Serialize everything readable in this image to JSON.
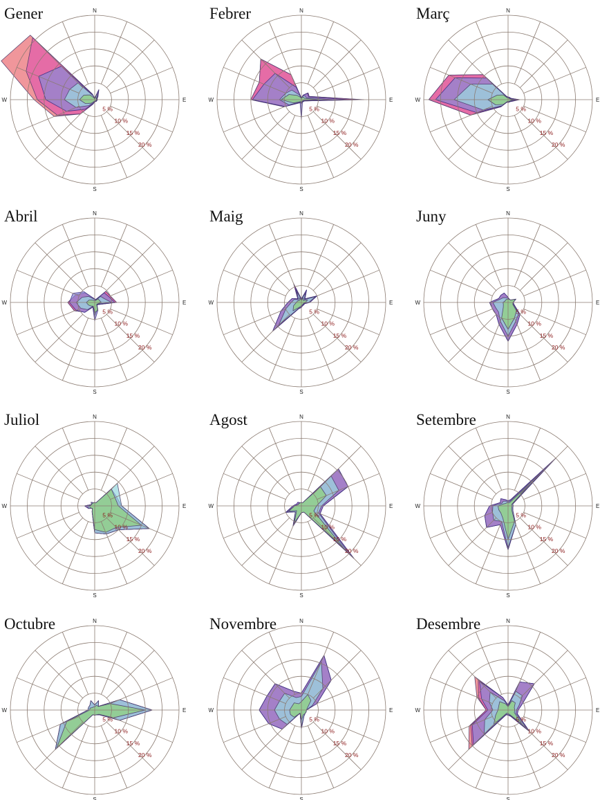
{
  "chart_data": {
    "type": "wind-rose",
    "directions": [
      "N",
      "NNE",
      "NE",
      "ENE",
      "E",
      "ESE",
      "SE",
      "SSE",
      "S",
      "SSW",
      "SW",
      "WSW",
      "W",
      "WNW",
      "NW",
      "NNW"
    ],
    "compass_labels": {
      "n": "N",
      "e": "E",
      "s": "S",
      "w": "W"
    },
    "rings": [
      5,
      10,
      15,
      20,
      25
    ],
    "ring_labels": [
      "5 %",
      "10 %",
      "15 %",
      "20 %"
    ],
    "layer_colors": [
      "#ea6e74",
      "#e05cab",
      "#8b88d6",
      "#9ad8df",
      "#8fd17c"
    ],
    "months": [
      {
        "name": "Gener",
        "layers": [
          [
            0.4,
            3.2,
            1.4,
            0.8,
            0.8,
            0.7,
            0.7,
            0.6,
            0.7,
            1.5,
            6.0,
            13.0,
            18.0,
            30.0,
            27.0,
            1.8
          ],
          [
            0.4,
            3.2,
            1.4,
            0.8,
            0.8,
            0.7,
            0.7,
            0.6,
            0.7,
            1.5,
            6.0,
            12.0,
            17.0,
            22.0,
            26.0,
            1.8
          ],
          [
            0.4,
            3.0,
            1.3,
            0.7,
            0.8,
            0.7,
            0.7,
            0.6,
            0.6,
            1.3,
            4.0,
            9.0,
            14.5,
            18.0,
            14.0,
            1.6
          ],
          [
            0.3,
            2.0,
            1.0,
            0.6,
            0.7,
            0.6,
            0.6,
            0.5,
            0.5,
            1.0,
            2.5,
            6.0,
            9.0,
            8.0,
            7.0,
            1.3
          ],
          [
            0.2,
            1.0,
            0.7,
            0.5,
            0.5,
            0.5,
            0.5,
            0.4,
            0.4,
            0.6,
            1.5,
            3.0,
            4.5,
            3.5,
            2.0,
            0.6
          ]
        ]
      },
      {
        "name": "Febrer",
        "layers": [
          [
            0.5,
            1.5,
            2.8,
            2.5,
            18.5,
            1.0,
            0.8,
            0.8,
            1.0,
            1.0,
            1.5,
            5.5,
            15.0,
            13.5,
            17.0,
            8.0
          ],
          [
            0.5,
            1.5,
            2.8,
            2.5,
            18.0,
            1.0,
            0.8,
            0.8,
            1.0,
            1.0,
            1.5,
            5.5,
            15.0,
            13.5,
            17.0,
            8.0
          ],
          [
            0.5,
            1.5,
            2.6,
            2.3,
            14.0,
            1.0,
            0.8,
            0.8,
            6.0,
            1.0,
            1.5,
            5.3,
            14.5,
            12.0,
            11.0,
            4.0
          ],
          [
            0.4,
            1.2,
            1.6,
            1.5,
            9.0,
            0.8,
            0.7,
            0.7,
            1.2,
            0.8,
            1.2,
            4.0,
            6.5,
            5.0,
            4.0,
            1.5
          ],
          [
            0.3,
            0.8,
            1.0,
            1.0,
            5.5,
            0.6,
            0.5,
            0.6,
            0.8,
            0.6,
            0.9,
            2.5,
            6.0,
            4.0,
            1.8,
            0.8
          ]
        ]
      },
      {
        "name": "Març",
        "layers": [
          [
            0.8,
            0.8,
            0.8,
            1.0,
            3.5,
            1.3,
            0.8,
            0.8,
            0.8,
            0.8,
            3.0,
            12.0,
            23.5,
            19.0,
            10.5,
            1.0
          ],
          [
            0.8,
            0.8,
            0.8,
            1.0,
            3.3,
            1.3,
            0.8,
            0.8,
            0.8,
            0.8,
            3.0,
            12.0,
            23.5,
            19.0,
            10.5,
            1.0
          ],
          [
            0.8,
            0.8,
            0.8,
            1.0,
            2.5,
            1.2,
            0.8,
            0.8,
            0.8,
            0.8,
            2.8,
            10.0,
            21.5,
            17.0,
            9.0,
            1.0
          ],
          [
            0.6,
            0.6,
            0.6,
            0.8,
            2.0,
            1.0,
            0.7,
            0.7,
            0.7,
            0.7,
            2.5,
            8.0,
            16.0,
            12.0,
            6.5,
            0.8
          ],
          [
            0.5,
            0.5,
            0.5,
            0.6,
            1.5,
            0.8,
            0.6,
            0.6,
            0.6,
            0.6,
            2.0,
            4.0,
            6.0,
            3.5,
            2.0,
            0.6
          ]
        ]
      },
      {
        "name": "Abril",
        "layers": [
          [
            1.0,
            1.0,
            4.7,
            5.0,
            6.5,
            1.5,
            1.0,
            2.0,
            3.0,
            1.5,
            4.0,
            6.5,
            8.0,
            6.0,
            4.0,
            1.5
          ],
          [
            1.0,
            1.0,
            4.7,
            5.0,
            6.5,
            1.5,
            1.0,
            2.0,
            3.0,
            1.5,
            4.0,
            6.5,
            8.0,
            6.0,
            4.0,
            1.5
          ],
          [
            1.0,
            1.0,
            4.0,
            4.5,
            6.0,
            1.5,
            1.0,
            2.5,
            5.5,
            1.5,
            4.2,
            6.0,
            7.5,
            7.0,
            4.5,
            1.5
          ],
          [
            0.8,
            0.8,
            2.5,
            3.0,
            5.0,
            1.2,
            0.8,
            2.0,
            4.0,
            1.2,
            3.0,
            4.5,
            5.5,
            4.0,
            2.5,
            1.2
          ],
          [
            0.6,
            0.6,
            1.5,
            1.5,
            2.0,
            1.0,
            0.8,
            2.5,
            3.0,
            1.2,
            1.5,
            2.0,
            2.5,
            1.8,
            1.0,
            0.6
          ]
        ]
      },
      {
        "name": "Maig",
        "layers": [
          [
            1.0,
            4.0,
            1.5,
            5.0,
            2.5,
            1.0,
            1.0,
            1.0,
            1.5,
            2.0,
            12.0,
            6.5,
            4.0,
            3.0,
            1.5,
            6.0
          ],
          [
            1.0,
            4.0,
            1.5,
            5.0,
            2.5,
            1.0,
            1.0,
            1.0,
            1.5,
            2.0,
            12.0,
            6.5,
            4.0,
            3.0,
            1.5,
            6.0
          ],
          [
            1.0,
            4.0,
            1.5,
            5.0,
            2.5,
            1.0,
            1.0,
            1.0,
            1.5,
            2.0,
            12.0,
            6.5,
            4.0,
            3.0,
            1.5,
            4.5
          ],
          [
            0.8,
            3.0,
            1.2,
            4.5,
            2.2,
            0.8,
            0.8,
            0.8,
            1.3,
            1.8,
            9.5,
            5.0,
            3.0,
            2.3,
            1.2,
            3.5
          ],
          [
            0.6,
            1.5,
            0.8,
            2.0,
            1.2,
            0.7,
            0.7,
            0.8,
            1.0,
            1.5,
            3.5,
            2.5,
            1.5,
            1.2,
            0.8,
            1.5
          ]
        ]
      },
      {
        "name": "Juny",
        "layers": [
          [
            1.5,
            1.0,
            1.0,
            2.5,
            1.5,
            2.0,
            5.0,
            7.0,
            11.5,
            7.0,
            5.0,
            5.0,
            5.5,
            3.0,
            3.0,
            3.0
          ],
          [
            1.5,
            1.0,
            1.0,
            2.5,
            1.5,
            2.0,
            5.0,
            7.0,
            11.5,
            7.0,
            5.0,
            5.0,
            5.5,
            3.0,
            3.0,
            3.0
          ],
          [
            1.5,
            1.0,
            1.0,
            2.5,
            1.5,
            2.0,
            5.0,
            7.0,
            11.5,
            7.0,
            5.0,
            5.0,
            5.5,
            3.0,
            3.0,
            3.0
          ],
          [
            1.2,
            1.0,
            1.0,
            2.5,
            1.5,
            1.8,
            4.5,
            6.0,
            10.0,
            6.0,
            4.0,
            4.0,
            4.5,
            2.5,
            2.0,
            1.5
          ],
          [
            1.0,
            1.0,
            1.0,
            2.5,
            1.5,
            1.5,
            3.5,
            5.0,
            8.0,
            5.0,
            2.0,
            1.5,
            1.5,
            1.0,
            1.0,
            1.0
          ]
        ]
      },
      {
        "name": "Juliol",
        "layers": [
          [
            1.0,
            1.0,
            7.0,
            7.0,
            8.0,
            17.5,
            10.0,
            9.0,
            8.0,
            2.0,
            1.0,
            2.0,
            3.0,
            1.0,
            1.5,
            1.0
          ],
          [
            1.0,
            1.0,
            7.0,
            7.0,
            8.0,
            17.5,
            10.0,
            9.0,
            8.0,
            2.0,
            1.0,
            2.0,
            3.0,
            1.0,
            1.5,
            1.0
          ],
          [
            1.0,
            1.0,
            7.0,
            7.0,
            8.0,
            17.5,
            10.0,
            9.0,
            8.0,
            2.0,
            1.0,
            2.0,
            3.0,
            1.0,
            1.5,
            1.0
          ],
          [
            1.0,
            1.0,
            9.5,
            8.0,
            8.0,
            17.5,
            10.0,
            9.0,
            8.0,
            2.0,
            1.0,
            2.0,
            2.0,
            1.0,
            1.5,
            1.0
          ],
          [
            1.0,
            1.0,
            7.0,
            6.5,
            7.0,
            15.0,
            9.0,
            8.5,
            7.0,
            2.0,
            1.0,
            1.5,
            1.5,
            1.0,
            1.0,
            1.0
          ]
        ]
      },
      {
        "name": "Agost",
        "layers": [
          [
            1.0,
            1.0,
            15.5,
            15.0,
            6.5,
            6.0,
            22.0,
            2.0,
            2.0,
            6.5,
            2.5,
            5.0,
            2.5,
            1.5,
            1.5,
            1.0
          ],
          [
            1.0,
            1.0,
            15.5,
            15.0,
            6.5,
            6.0,
            22.0,
            2.0,
            2.0,
            6.5,
            2.5,
            5.0,
            2.5,
            1.5,
            1.5,
            1.0
          ],
          [
            1.0,
            1.0,
            15.5,
            15.0,
            6.5,
            6.0,
            22.0,
            2.0,
            2.0,
            6.5,
            2.5,
            5.0,
            2.5,
            1.5,
            1.5,
            1.0
          ],
          [
            1.0,
            1.0,
            12.5,
            12.0,
            6.0,
            5.5,
            20.0,
            2.0,
            2.0,
            6.0,
            2.5,
            4.5,
            2.0,
            1.0,
            1.0,
            1.0
          ],
          [
            1.0,
            1.0,
            8.0,
            8.0,
            4.5,
            4.0,
            18.0,
            2.0,
            2.0,
            5.5,
            2.0,
            4.0,
            2.0,
            1.0,
            1.0,
            1.0
          ]
        ]
      },
      {
        "name": "Setembre",
        "layers": [
          [
            1.5,
            2.0,
            20.0,
            1.5,
            1.5,
            1.5,
            2.0,
            6.0,
            13.0,
            6.0,
            9.0,
            7.5,
            5.5,
            2.5,
            3.0,
            2.0
          ],
          [
            1.5,
            2.0,
            20.0,
            1.5,
            1.5,
            1.5,
            2.0,
            6.0,
            13.0,
            6.0,
            9.0,
            7.5,
            5.5,
            2.5,
            3.0,
            2.0
          ],
          [
            1.5,
            2.0,
            20.0,
            1.5,
            1.5,
            1.5,
            2.0,
            6.0,
            13.0,
            6.0,
            9.0,
            7.5,
            5.5,
            2.5,
            3.0,
            2.0
          ],
          [
            1.2,
            1.5,
            15.0,
            1.5,
            1.5,
            1.5,
            2.0,
            6.0,
            12.5,
            5.0,
            6.0,
            5.0,
            4.5,
            2.0,
            2.0,
            1.5
          ],
          [
            1.0,
            1.0,
            10.0,
            1.2,
            1.2,
            1.2,
            1.5,
            5.0,
            10.0,
            4.0,
            3.0,
            3.0,
            3.0,
            1.5,
            1.0,
            1.0
          ]
        ]
      },
      {
        "name": "Octubre",
        "layers": [
          [
            1.5,
            3.0,
            1.5,
            8.0,
            17.0,
            8.0,
            2.0,
            1.5,
            1.5,
            1.5,
            16.5,
            11.0,
            2.0,
            2.0,
            2.0,
            3.0
          ],
          [
            1.5,
            3.0,
            1.5,
            8.0,
            17.0,
            8.0,
            2.0,
            1.5,
            1.5,
            1.5,
            16.5,
            11.0,
            2.0,
            2.0,
            2.0,
            3.0
          ],
          [
            1.5,
            3.0,
            1.5,
            8.0,
            17.0,
            8.0,
            2.0,
            1.5,
            1.5,
            1.5,
            16.5,
            11.0,
            2.0,
            2.0,
            2.0,
            3.0
          ],
          [
            1.5,
            3.0,
            1.5,
            8.0,
            17.0,
            8.0,
            2.0,
            1.5,
            1.5,
            1.5,
            16.5,
            11.0,
            2.0,
            2.0,
            2.0,
            3.0
          ],
          [
            1.0,
            1.5,
            1.5,
            5.0,
            15.0,
            6.0,
            1.8,
            1.5,
            1.5,
            1.5,
            16.0,
            9.0,
            1.5,
            1.5,
            1.0,
            1.0
          ]
        ]
      },
      {
        "name": "Novembre",
        "layers": [
          [
            5.0,
            17.5,
            12.5,
            5.0,
            1.5,
            1.5,
            1.5,
            2.0,
            5.5,
            1.0,
            8.0,
            10.5,
            12.5,
            11.0,
            11.0,
            6.0
          ],
          [
            5.0,
            17.5,
            12.5,
            5.0,
            1.5,
            1.5,
            1.5,
            2.0,
            5.5,
            1.0,
            8.0,
            10.5,
            12.5,
            11.0,
            11.0,
            6.0
          ],
          [
            5.0,
            17.5,
            12.5,
            5.0,
            1.5,
            1.5,
            1.5,
            2.0,
            5.5,
            1.0,
            8.0,
            10.5,
            12.5,
            11.0,
            11.0,
            6.0
          ],
          [
            4.0,
            15.5,
            9.0,
            3.5,
            1.5,
            1.5,
            1.5,
            2.0,
            5.0,
            1.0,
            6.0,
            7.0,
            8.0,
            7.0,
            7.0,
            4.0
          ],
          [
            2.5,
            5.0,
            4.0,
            2.0,
            1.5,
            1.5,
            1.5,
            1.5,
            3.0,
            1.0,
            3.0,
            3.5,
            3.5,
            3.0,
            3.0,
            2.0
          ]
        ]
      },
      {
        "name": "Desembre",
        "layers": [
          [
            1.5,
            9.0,
            11.0,
            4.5,
            3.0,
            3.0,
            9.0,
            2.0,
            1.5,
            1.5,
            16.5,
            12.5,
            6.5,
            10.0,
            14.0,
            4.0
          ],
          [
            1.5,
            9.0,
            11.0,
            4.5,
            3.0,
            3.0,
            9.0,
            2.0,
            1.5,
            1.5,
            15.0,
            12.0,
            6.5,
            9.5,
            12.5,
            4.0
          ],
          [
            1.5,
            9.0,
            11.0,
            4.5,
            3.0,
            3.0,
            9.0,
            2.0,
            1.5,
            1.5,
            14.5,
            11.5,
            6.0,
            8.5,
            12.0,
            4.0
          ],
          [
            1.2,
            6.0,
            6.0,
            3.5,
            2.5,
            2.5,
            8.0,
            1.8,
            1.3,
            1.3,
            10.0,
            7.5,
            4.5,
            6.0,
            7.5,
            3.0
          ],
          [
            1.0,
            3.0,
            3.0,
            2.0,
            2.0,
            2.0,
            6.0,
            1.5,
            1.0,
            1.0,
            6.0,
            4.0,
            3.0,
            3.0,
            3.5,
            2.0
          ]
        ]
      }
    ]
  }
}
